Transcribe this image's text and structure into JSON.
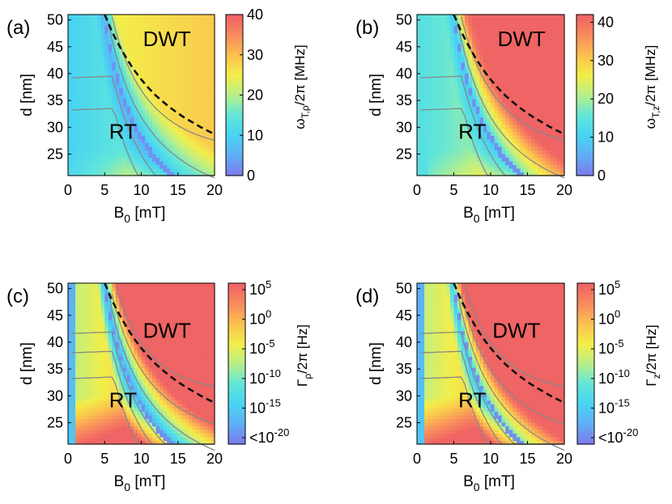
{
  "colormap": [
    "#7b7cee",
    "#5fb0f5",
    "#48d4f2",
    "#62e6d9",
    "#b6ef8a",
    "#f3ee4a",
    "#fbc34e",
    "#f98c5d",
    "#ef6464"
  ],
  "contour_color": "#888888",
  "dashed_color": "#111111",
  "chart_data": [
    {
      "type": "heatmap",
      "panel_label": "(a)",
      "xlabel_base": "B",
      "xlabel_sub": "0",
      "xlabel_unit": " [mT]",
      "ylabel": "d [nm]",
      "x_range": [
        0,
        20
      ],
      "y_range": [
        21,
        51
      ],
      "x_ticks": [
        "0",
        "5",
        "10",
        "15",
        "20"
      ],
      "x_tick_values": [
        0,
        5,
        10,
        15,
        20
      ],
      "y_ticks": [
        "25",
        "30",
        "35",
        "40",
        "45",
        "50"
      ],
      "y_tick_values": [
        25,
        30,
        35,
        40,
        45,
        50
      ],
      "region_labels": [
        {
          "text": "DWT",
          "x": 13.5,
          "y": 46.5
        },
        {
          "text": "RT",
          "x": 7.5,
          "y": 29.2
        }
      ],
      "boundary_curve": {
        "x": [
          5,
          6,
          7,
          8,
          9,
          10,
          11,
          12,
          13,
          14,
          15,
          16,
          17,
          18,
          19,
          20
        ],
        "y": [
          51,
          47.8,
          45.2,
          42.8,
          40.7,
          38.9,
          37.3,
          35.9,
          34.7,
          33.6,
          32.6,
          31.7,
          30.9,
          30.1,
          29.4,
          28.7
        ]
      },
      "colorbar_label_main": "ω",
      "colorbar_label_sub": "T,ρ",
      "colorbar_label_tail": "/2π [MHz]",
      "colorbar_ticks": [
        "0",
        "10",
        "20",
        "30",
        "40"
      ],
      "colorbar_range": [
        0,
        40
      ],
      "field_model": "frequency_rho"
    },
    {
      "type": "heatmap",
      "panel_label": "(b)",
      "xlabel_base": "B",
      "xlabel_sub": "0",
      "xlabel_unit": " [mT]",
      "ylabel": "d [nm]",
      "x_range": [
        0,
        20
      ],
      "y_range": [
        21,
        51
      ],
      "x_ticks": [
        "0",
        "5",
        "10",
        "15",
        "20"
      ],
      "x_tick_values": [
        0,
        5,
        10,
        15,
        20
      ],
      "y_ticks": [
        "25",
        "30",
        "35",
        "40",
        "45",
        "50"
      ],
      "y_tick_values": [
        25,
        30,
        35,
        40,
        45,
        50
      ],
      "region_labels": [
        {
          "text": "DWT",
          "x": 14.2,
          "y": 46.5
        },
        {
          "text": "RT",
          "x": 7.5,
          "y": 29.2
        }
      ],
      "boundary_curve": {
        "x": [
          5,
          6,
          7,
          8,
          9,
          10,
          11,
          12,
          13,
          14,
          15,
          16,
          17,
          18,
          19,
          20
        ],
        "y": [
          51,
          47.8,
          45.2,
          42.8,
          40.7,
          38.9,
          37.3,
          35.9,
          34.7,
          33.6,
          32.6,
          31.7,
          30.9,
          30.1,
          29.4,
          28.7
        ]
      },
      "colorbar_label_main": "ω",
      "colorbar_label_sub": "T,z",
      "colorbar_label_tail": "/2π [MHz]",
      "colorbar_ticks": [
        "0",
        "10",
        "20",
        "30",
        "40"
      ],
      "colorbar_range": [
        0,
        42
      ],
      "field_model": "frequency_z"
    },
    {
      "type": "heatmap",
      "panel_label": "(c)",
      "xlabel_base": "B",
      "xlabel_sub": "0",
      "xlabel_unit": " [mT]",
      "ylabel": "d [nm]",
      "x_range": [
        0,
        20
      ],
      "y_range": [
        21,
        51
      ],
      "x_ticks": [
        "0",
        "5",
        "10",
        "15",
        "20"
      ],
      "x_tick_values": [
        0,
        5,
        10,
        15,
        20
      ],
      "y_ticks": [
        "25",
        "30",
        "35",
        "40",
        "45",
        "50"
      ],
      "y_tick_values": [
        25,
        30,
        35,
        40,
        45,
        50
      ],
      "region_labels": [
        {
          "text": "DWT",
          "x": 13.5,
          "y": 42.2
        },
        {
          "text": "RT",
          "x": 7.5,
          "y": 29.2
        }
      ],
      "boundary_curve": {
        "x": [
          5,
          6,
          7,
          8,
          9,
          10,
          11,
          12,
          13,
          14,
          15,
          16,
          17,
          18,
          19,
          20
        ],
        "y": [
          51,
          47.8,
          45.2,
          42.8,
          40.7,
          38.9,
          37.3,
          35.9,
          34.7,
          33.6,
          32.6,
          31.7,
          30.9,
          30.1,
          29.4,
          28.7
        ]
      },
      "colorbar_label_main": "Γ",
      "colorbar_label_sub": "ρ",
      "colorbar_label_tail": "/2π [Hz]",
      "colorbar_ticks": [
        {
          "base": "10",
          "exp": "5"
        },
        {
          "base": "10",
          "exp": "0"
        },
        {
          "base": "10",
          "exp": "-5"
        },
        {
          "base": "10",
          "exp": "-10"
        },
        {
          "base": "10",
          "exp": "-15"
        },
        {
          "base": "<10",
          "exp": "-20"
        }
      ],
      "colorbar_range": [
        -20,
        5
      ],
      "field_model": "rate_rho"
    },
    {
      "type": "heatmap",
      "panel_label": "(d)",
      "xlabel_base": "B",
      "xlabel_sub": "0",
      "xlabel_unit": " [mT]",
      "ylabel": "d [nm]",
      "x_range": [
        0,
        20
      ],
      "y_range": [
        21,
        51
      ],
      "x_ticks": [
        "0",
        "5",
        "10",
        "15",
        "20"
      ],
      "x_tick_values": [
        0,
        5,
        10,
        15,
        20
      ],
      "y_ticks": [
        "25",
        "30",
        "35",
        "40",
        "45",
        "50"
      ],
      "y_tick_values": [
        25,
        30,
        35,
        40,
        45,
        50
      ],
      "region_labels": [
        {
          "text": "DWT",
          "x": 13.5,
          "y": 42.2
        },
        {
          "text": "RT",
          "x": 7.5,
          "y": 29.2
        }
      ],
      "boundary_curve": {
        "x": [
          5,
          6,
          7,
          8,
          9,
          10,
          11,
          12,
          13,
          14,
          15,
          16,
          17,
          18,
          19,
          20
        ],
        "y": [
          51,
          47.8,
          45.2,
          42.8,
          40.7,
          38.9,
          37.3,
          35.9,
          34.7,
          33.6,
          32.6,
          31.7,
          30.9,
          30.1,
          29.4,
          28.7
        ]
      },
      "colorbar_label_main": "Γ",
      "colorbar_label_sub": "z",
      "colorbar_label_tail": "/2π [Hz]",
      "colorbar_ticks": [
        {
          "base": "10",
          "exp": "5"
        },
        {
          "base": "10",
          "exp": "0"
        },
        {
          "base": "10",
          "exp": "-5"
        },
        {
          "base": "10",
          "exp": "-10"
        },
        {
          "base": "10",
          "exp": "-15"
        },
        {
          "base": "<10",
          "exp": "-20"
        }
      ],
      "colorbar_range": [
        -20,
        5
      ],
      "field_model": "rate_z"
    }
  ]
}
